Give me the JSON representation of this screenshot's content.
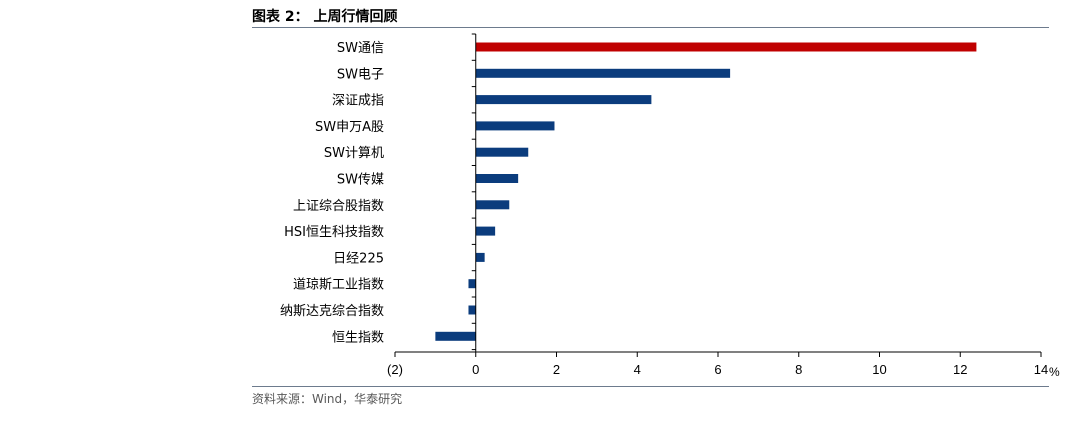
{
  "figure": {
    "title": "图表 2：  上周行情回顾",
    "source": "资料来源：Wind，华泰研究"
  },
  "colors": {
    "highlight": "#c00000",
    "bar": "#0b3c7d",
    "axis": "#000000",
    "rule": "#6d7b8d"
  },
  "chart_data": {
    "type": "bar",
    "orientation": "horizontal",
    "title": "上周行情回顾",
    "categories": [
      "SW通信",
      "SW电子",
      "深证成指",
      "SW申万A股",
      "SW计算机",
      "SW传媒",
      "上证综合股指数",
      "HSI恒生科技指数",
      "日经225",
      "道琼斯工业指数",
      "纳斯达克综合指数",
      "恒生指数"
    ],
    "values": [
      12.4,
      6.3,
      4.35,
      1.95,
      1.3,
      1.05,
      0.83,
      0.48,
      0.22,
      -0.18,
      -0.18,
      -1.0
    ],
    "highlight_index": 0,
    "xlim": [
      -2,
      14
    ],
    "xticks": [
      -2,
      0,
      2,
      4,
      6,
      8,
      10,
      12,
      14
    ],
    "xtick_labels": [
      "(2)",
      "0",
      "2",
      "4",
      "6",
      "8",
      "10",
      "12",
      "14"
    ],
    "xunit": "%",
    "grid": false,
    "legend": "none"
  }
}
